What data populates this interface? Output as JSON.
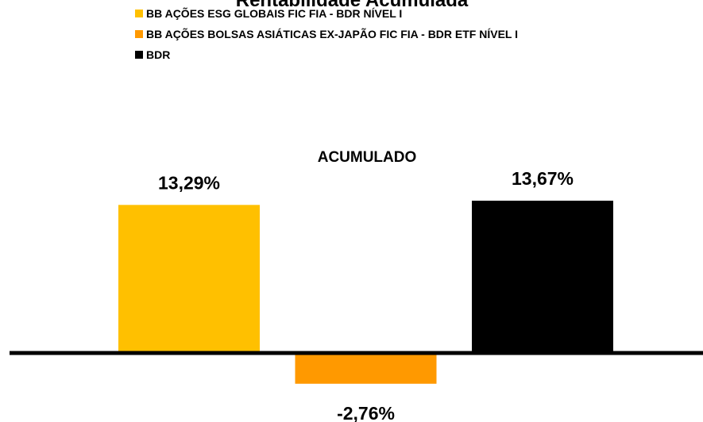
{
  "chart_data": {
    "type": "bar",
    "title": "Rentabilidade Acumulada",
    "categories": [
      "ACUMULADO"
    ],
    "series": [
      {
        "name": "BB AÇÕES ESG GLOBAIS FIC FIA - BDR NÍVEL I",
        "color": "#ffc000",
        "values": [
          13.29
        ],
        "value_labels": [
          "13,29%"
        ]
      },
      {
        "name": "BB AÇÕES BOLSAS ASIÁTICAS EX-JAPÃO FIC FIA - BDR ETF NÍVEL I",
        "color": "#ff9900",
        "values": [
          -2.76
        ],
        "value_labels": [
          "-2,76%"
        ]
      },
      {
        "name": "BDR",
        "color": "#000000",
        "values": [
          13.67
        ],
        "value_labels": [
          "13,67%"
        ]
      }
    ],
    "legend": "top-left"
  }
}
